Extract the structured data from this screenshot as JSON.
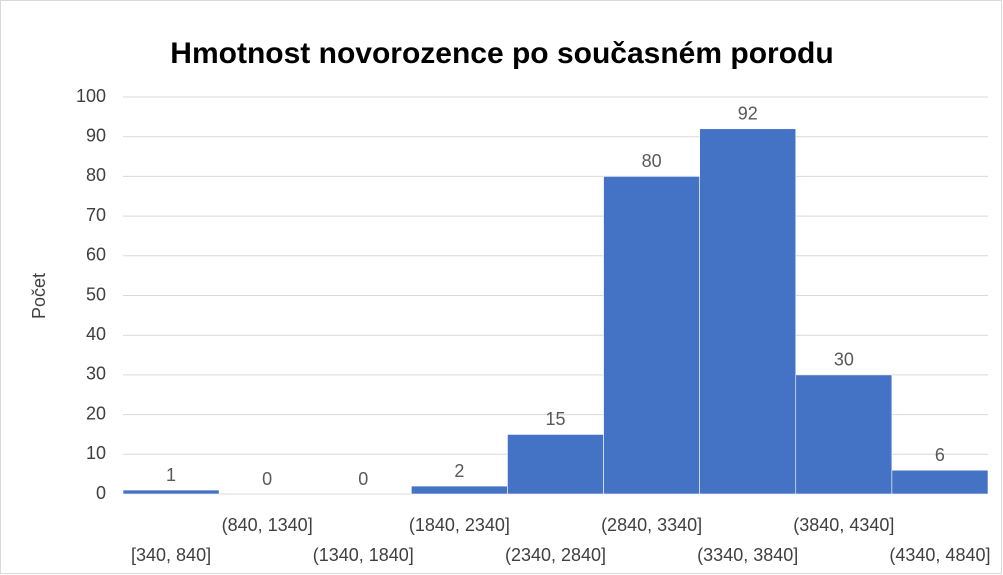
{
  "chart_data": {
    "type": "bar",
    "title": "Hmotnost novorozence po současném porodu",
    "y_label": "Počet",
    "categories": [
      "[340, 840]",
      "(840, 1340]",
      "(1340, 1840]",
      "(1840, 2340]",
      "(2340, 2840]",
      "(2840, 3340]",
      "(3340, 3840]",
      "(3840, 4340]",
      "(4340, 4840]"
    ],
    "values": [
      1,
      0,
      0,
      2,
      15,
      80,
      92,
      30,
      6
    ],
    "color": "#4472c4",
    "ylim": [
      0,
      100
    ],
    "yticks": [
      0,
      10,
      20,
      30,
      40,
      50,
      60,
      70,
      80,
      90,
      100
    ],
    "grid": true
  }
}
